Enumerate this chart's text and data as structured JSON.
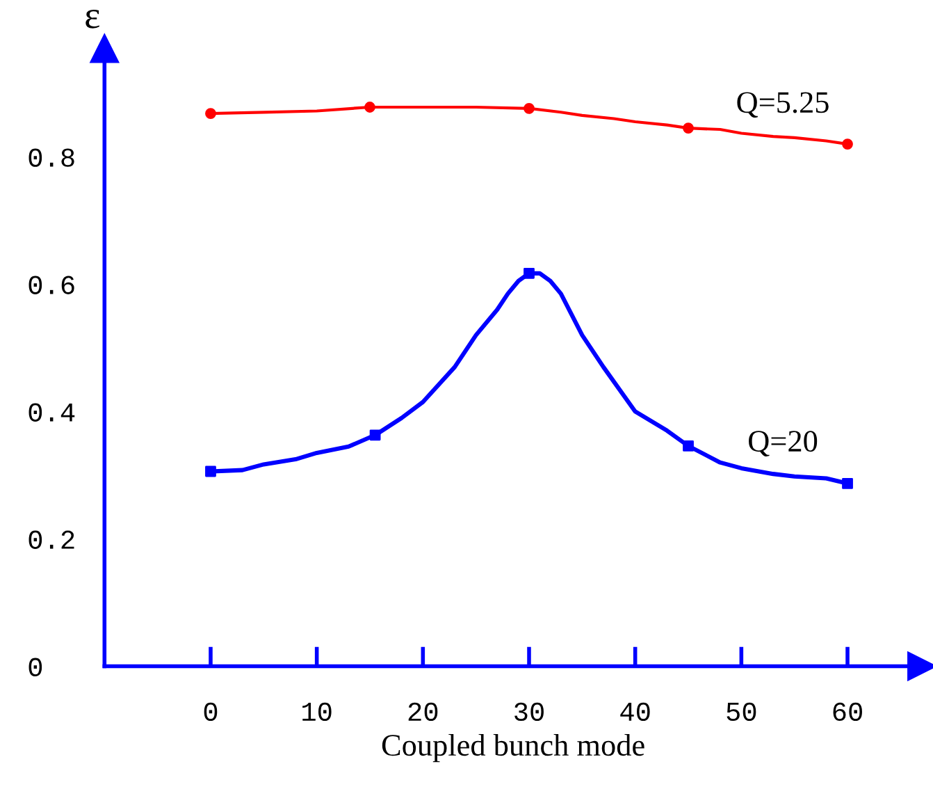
{
  "chart_data": {
    "type": "line",
    "xlabel": "Coupled bunch mode",
    "ylabel": "ε",
    "xlim": [
      -10,
      67
    ],
    "ylim": [
      0,
      0.97
    ],
    "xticks": [
      0,
      10,
      20,
      30,
      40,
      50,
      60
    ],
    "yticks": [
      0,
      0.2,
      0.4,
      0.6,
      0.8
    ],
    "grid": false,
    "line_style": "solid",
    "series": [
      {
        "color": "#ff0000",
        "marker": "none",
        "x": [
          0,
          5,
          10,
          15,
          20,
          25,
          30,
          33,
          35,
          38,
          40,
          43,
          45,
          48,
          50,
          53,
          55,
          58,
          60
        ],
        "values": [
          0.868,
          0.87,
          0.872,
          0.878,
          0.878,
          0.878,
          0.876,
          0.87,
          0.865,
          0.86,
          0.855,
          0.85,
          0.845,
          0.843,
          0.837,
          0.832,
          0.83,
          0.825,
          0.82
        ]
      },
      {
        "color": "#0000ff",
        "marker": "none",
        "x": [
          0,
          3,
          5,
          8,
          10,
          13,
          15.5,
          18,
          20,
          23,
          25,
          27,
          28,
          29,
          30,
          31,
          32,
          33,
          35,
          37,
          40,
          43,
          45,
          48,
          50,
          53,
          55,
          58,
          60
        ],
        "values": [
          0.306,
          0.308,
          0.317,
          0.325,
          0.335,
          0.345,
          0.363,
          0.39,
          0.415,
          0.47,
          0.52,
          0.56,
          0.585,
          0.605,
          0.617,
          0.617,
          0.605,
          0.585,
          0.52,
          0.47,
          0.4,
          0.37,
          0.346,
          0.32,
          0.311,
          0.302,
          0.298,
          0.295,
          0.287
        ]
      },
      {
        "type": "scatter",
        "color": "#ff0000",
        "marker": "circle",
        "x": [
          0,
          15,
          30,
          45,
          60
        ],
        "values": [
          0.868,
          0.878,
          0.876,
          0.845,
          0.82
        ]
      },
      {
        "type": "scatter",
        "color": "#0000ff",
        "marker": "square",
        "x": [
          0,
          15.5,
          30,
          45,
          60
        ],
        "values": [
          0.306,
          0.363,
          0.617,
          0.346,
          0.287
        ]
      }
    ],
    "annotations": [
      "Q=5.25",
      "Q=20"
    ]
  }
}
